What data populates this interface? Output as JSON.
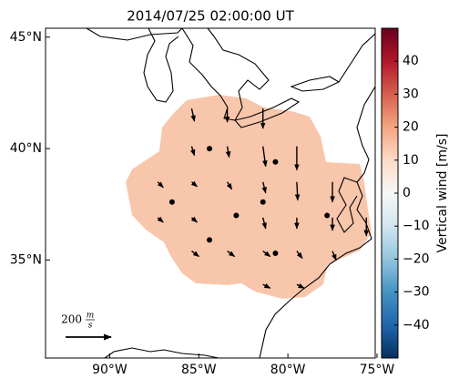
{
  "map": {
    "title": "2014/07/25 02:00:00 UT",
    "lon_lim": [
      -93.6,
      -75.1
    ],
    "lat_lim": [
      30.6,
      45.4
    ],
    "lon_ticks": [
      {
        "value": -90,
        "label": "90°W"
      },
      {
        "value": -85,
        "label": "85°W"
      },
      {
        "value": -80,
        "label": "80°W"
      },
      {
        "value": -75,
        "label": "75°W"
      }
    ],
    "lat_ticks": [
      {
        "value": 45,
        "label": "45°N"
      },
      {
        "value": 40,
        "label": "40°N"
      },
      {
        "value": 35,
        "label": "35°N"
      }
    ],
    "vectors": [
      {
        "lon": -85.4,
        "lat": 41.8,
        "u": 12,
        "v": -56
      },
      {
        "lon": -83.4,
        "lat": 41.8,
        "u": 0,
        "v": -60
      },
      {
        "lon": -81.4,
        "lat": 41.8,
        "u": 0,
        "v": -88
      },
      {
        "lon": -85.4,
        "lat": 40.1,
        "u": 12,
        "v": -40
      },
      {
        "lon": -83.4,
        "lat": 40.1,
        "u": 8,
        "v": -48
      },
      {
        "lon": -81.4,
        "lat": 40.1,
        "u": 12,
        "v": -88
      },
      {
        "lon": -79.5,
        "lat": 40.1,
        "u": 0,
        "v": -104
      },
      {
        "lon": -87.3,
        "lat": 38.5,
        "u": 24,
        "v": -24
      },
      {
        "lon": -85.4,
        "lat": 38.5,
        "u": 24,
        "v": -20
      },
      {
        "lon": -83.4,
        "lat": 38.5,
        "u": 20,
        "v": -32
      },
      {
        "lon": -81.4,
        "lat": 38.5,
        "u": 12,
        "v": -48
      },
      {
        "lon": -79.5,
        "lat": 38.5,
        "u": 4,
        "v": -80
      },
      {
        "lon": -77.5,
        "lat": 38.5,
        "u": 0,
        "v": -88
      },
      {
        "lon": -87.3,
        "lat": 36.9,
        "u": 24,
        "v": -20
      },
      {
        "lon": -85.4,
        "lat": 36.9,
        "u": 24,
        "v": -20
      },
      {
        "lon": -81.4,
        "lat": 36.9,
        "u": 12,
        "v": -48
      },
      {
        "lon": -79.5,
        "lat": 36.9,
        "u": 0,
        "v": -48
      },
      {
        "lon": -77.5,
        "lat": 36.9,
        "u": 0,
        "v": -56
      },
      {
        "lon": -75.6,
        "lat": 36.9,
        "u": 0,
        "v": -80
      },
      {
        "lon": -85.4,
        "lat": 35.4,
        "u": 32,
        "v": -24
      },
      {
        "lon": -83.4,
        "lat": 35.4,
        "u": 32,
        "v": -24
      },
      {
        "lon": -81.4,
        "lat": 35.4,
        "u": 32,
        "v": -24
      },
      {
        "lon": -79.5,
        "lat": 35.4,
        "u": 24,
        "v": -32
      },
      {
        "lon": -77.5,
        "lat": 35.4,
        "u": 16,
        "v": -40
      },
      {
        "lon": -81.4,
        "lat": 33.9,
        "u": 32,
        "v": -16
      },
      {
        "lon": -79.5,
        "lat": 33.9,
        "u": 32,
        "v": -16
      }
    ],
    "points": [
      {
        "lon": -84.4,
        "lat": 40.0
      },
      {
        "lon": -80.7,
        "lat": 39.4
      },
      {
        "lon": -86.5,
        "lat": 37.6
      },
      {
        "lon": -82.9,
        "lat": 37.0
      },
      {
        "lon": -81.4,
        "lat": 37.6
      },
      {
        "lon": -77.8,
        "lat": 37.0
      },
      {
        "lon": -84.4,
        "lat": 35.9
      },
      {
        "lon": -80.7,
        "lat": 35.3
      }
    ],
    "scale": {
      "value": 200,
      "unit_num": "m",
      "unit_den": "s"
    },
    "colorbar": {
      "label": "Vertical wind [m/s]",
      "lim": [
        -50,
        50
      ],
      "ticks": [
        {
          "value": -40,
          "label": "−40"
        },
        {
          "value": -30,
          "label": "−30"
        },
        {
          "value": -20,
          "label": "−20"
        },
        {
          "value": -10,
          "label": "−10"
        },
        0,
        10,
        20,
        30,
        40
      ]
    }
  }
}
